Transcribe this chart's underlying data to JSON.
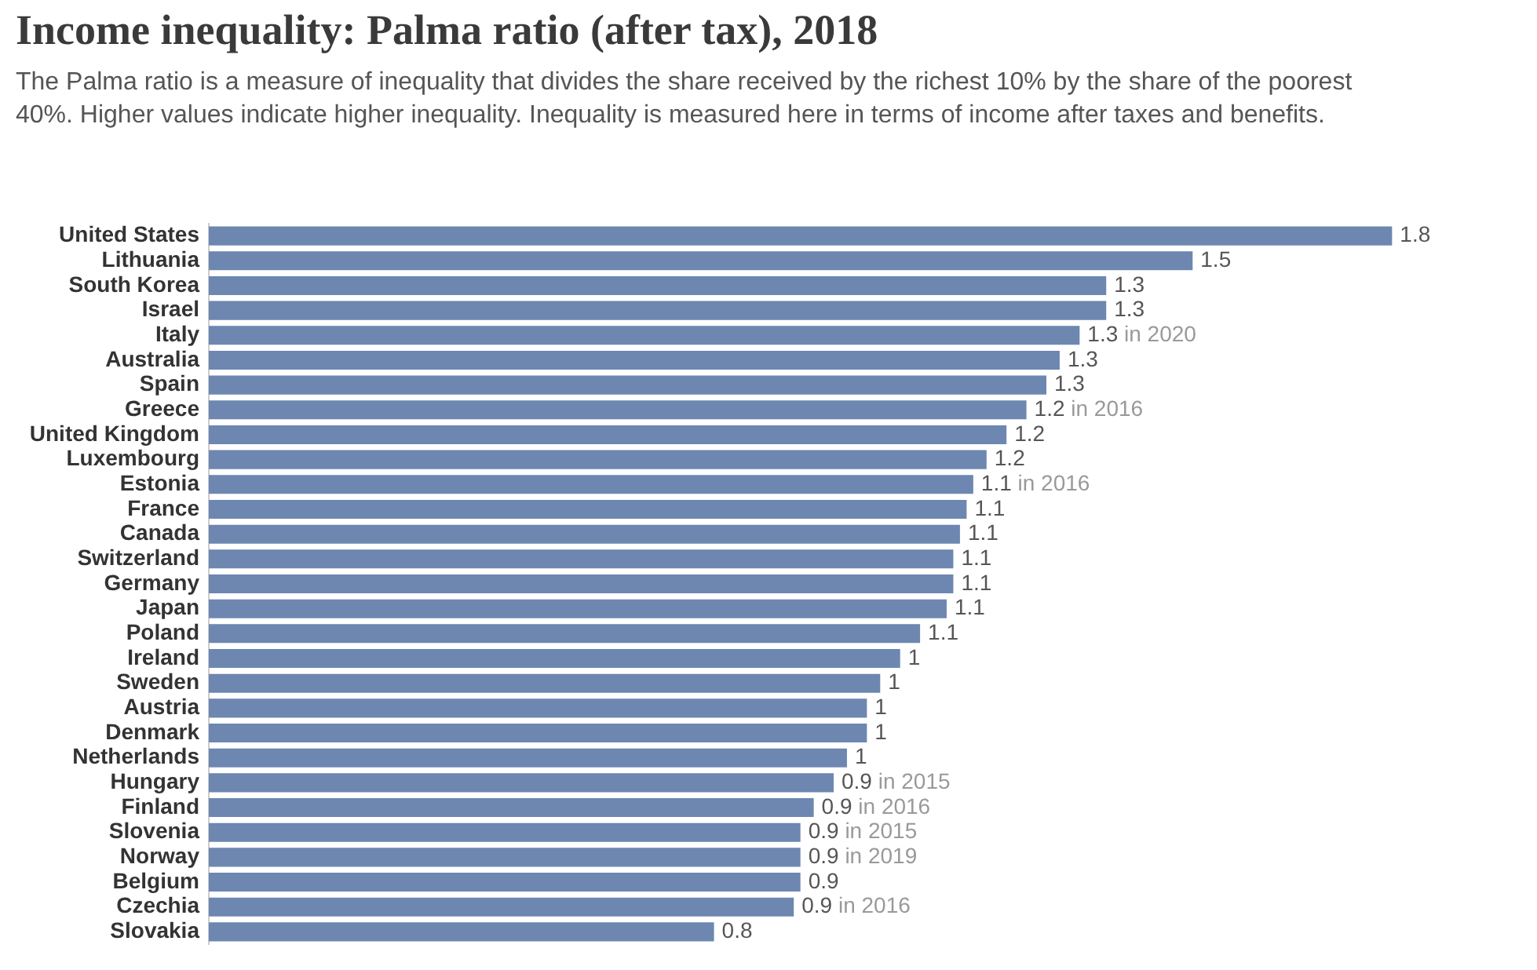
{
  "chart_data": {
    "type": "bar",
    "orientation": "horizontal",
    "title": "Income inequality: Palma ratio (after tax), 2018",
    "subtitle": "The Palma ratio is a measure of inequality that divides the share received by the richest 10% by the share of the poorest 40%. Higher values indicate higher inequality. Inequality is measured here in terms of income after taxes and benefits.",
    "color": "#6d87b1",
    "categories": [
      "United States",
      "Lithuania",
      "South Korea",
      "Israel",
      "Italy",
      "Australia",
      "Spain",
      "Greece",
      "United Kingdom",
      "Luxembourg",
      "Estonia",
      "France",
      "Canada",
      "Switzerland",
      "Germany",
      "Japan",
      "Poland",
      "Ireland",
      "Sweden",
      "Austria",
      "Denmark",
      "Netherlands",
      "Hungary",
      "Finland",
      "Slovenia",
      "Norway",
      "Belgium",
      "Czechia",
      "Slovakia"
    ],
    "values": [
      1.78,
      1.48,
      1.35,
      1.35,
      1.31,
      1.28,
      1.26,
      1.23,
      1.2,
      1.17,
      1.15,
      1.14,
      1.13,
      1.12,
      1.12,
      1.11,
      1.07,
      1.04,
      1.01,
      0.99,
      0.99,
      0.96,
      0.94,
      0.91,
      0.89,
      0.89,
      0.89,
      0.88,
      0.76
    ],
    "value_labels": [
      "1.8",
      "1.5",
      "1.3",
      "1.3",
      "1.3 in 2020",
      "1.3",
      "1.3",
      "1.2 in 2016",
      "1.2",
      "1.2",
      "1.1 in 2016",
      "1.1",
      "1.1",
      "1.1",
      "1.1",
      "1.1",
      "1.1",
      "1",
      "1",
      "1",
      "1",
      "1",
      "0.9 in 2015",
      "0.9 in 2016",
      "0.9 in 2015",
      "0.9 in 2019",
      "0.9",
      "0.9 in 2016",
      "0.8"
    ]
  }
}
